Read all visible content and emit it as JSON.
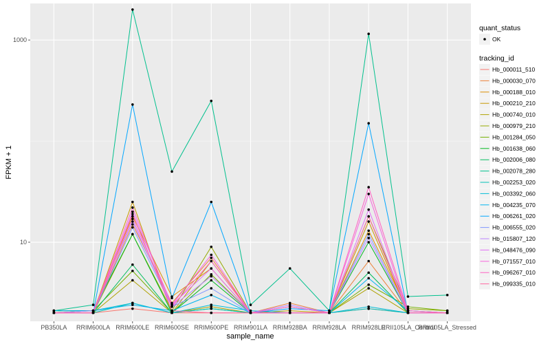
{
  "chart_data": {
    "type": "line",
    "xlabel": "sample_name",
    "ylabel": "FPKM + 1",
    "y_scale": "log10",
    "ylim": [
      1.65,
      2300
    ],
    "y_ticks": [
      {
        "value": 10,
        "label": "10"
      },
      {
        "value": 1000,
        "label": "1000"
      }
    ],
    "grid": true,
    "background": "#ebebeb",
    "legend_position": "right",
    "categories": [
      "PB350LA",
      "RRIM600LA",
      "RRIM600LE",
      "RRIM600SE",
      "RRIM600PE",
      "RRIM901LA",
      "RRIM928BA",
      "RRIM928LA",
      "RRIM928LE",
      "RRII105LA_Control",
      "RRII105LA_Stressed"
    ],
    "legend_quant": {
      "title": "quant_status",
      "items": [
        {
          "label": "OK",
          "marker": "point"
        }
      ]
    },
    "legend_tracking": {
      "title": "tracking_id"
    },
    "series": [
      {
        "name": "Hb_000011_510",
        "color": "#F8766D",
        "values": [
          2,
          2,
          2.2,
          2,
          2,
          2,
          2,
          2,
          2.2,
          2,
          2
        ]
      },
      {
        "name": "Hb_000030_070",
        "color": "#EC8239",
        "values": [
          2,
          2,
          15,
          2.5,
          7,
          2,
          2.5,
          2,
          6.5,
          2,
          2
        ]
      },
      {
        "name": "Hb_000188_010",
        "color": "#DB8E00",
        "values": [
          2.1,
          2.1,
          18,
          2.9,
          5.5,
          2,
          2.3,
          2,
          13,
          2.1,
          2
        ]
      },
      {
        "name": "Hb_000210_210",
        "color": "#C79800",
        "values": [
          2,
          2,
          25,
          2,
          6.5,
          2,
          2.1,
          2,
          16,
          2,
          2
        ]
      },
      {
        "name": "Hb_000740_010",
        "color": "#AFA100",
        "values": [
          2,
          2,
          4.2,
          2,
          2.3,
          2,
          2,
          2,
          3.5,
          2,
          2
        ]
      },
      {
        "name": "Hb_000979_210",
        "color": "#96A900",
        "values": [
          2,
          2,
          12,
          2.1,
          9,
          2,
          2,
          2,
          18,
          2.2,
          2.1
        ]
      },
      {
        "name": "Hb_001284_050",
        "color": "#72B000",
        "values": [
          2,
          2.1,
          5.2,
          2,
          4.8,
          2,
          2,
          2,
          3.8,
          2.3,
          2.1
        ]
      },
      {
        "name": "Hb_001638_060",
        "color": "#00B81F",
        "values": [
          2.1,
          2.1,
          12,
          2,
          4.2,
          2,
          2,
          2,
          10,
          2,
          2
        ]
      },
      {
        "name": "Hb_002006_080",
        "color": "#00BD5C",
        "values": [
          2,
          2,
          6,
          2,
          2.2,
          2,
          2,
          2,
          5,
          2,
          2
        ]
      },
      {
        "name": "Hb_002078_280",
        "color": "#00C08D",
        "values": [
          2.1,
          2.4,
          2000,
          50,
          250,
          2.4,
          5.5,
          2.1,
          1150,
          2.9,
          3
        ]
      },
      {
        "name": "Hb_002253_020",
        "color": "#00C0B5",
        "values": [
          2,
          2,
          2.5,
          2,
          2.2,
          2,
          2,
          2,
          2.2,
          2,
          2
        ]
      },
      {
        "name": "Hb_003392_060",
        "color": "#00BCD6",
        "values": [
          2,
          2.1,
          2.5,
          2,
          2.4,
          2.1,
          2,
          2,
          2.3,
          2,
          2
        ]
      },
      {
        "name": "Hb_004235_070",
        "color": "#00B4EF",
        "values": [
          2.1,
          2.1,
          2.4,
          2.1,
          3,
          2,
          2,
          2,
          4.4,
          2.1,
          2
        ]
      },
      {
        "name": "Hb_006261_020",
        "color": "#00A6FF",
        "values": [
          2,
          2,
          230,
          2.8,
          25,
          2,
          2.2,
          2.1,
          150,
          2,
          2
        ]
      },
      {
        "name": "Hb_006555_020",
        "color": "#7F96FF",
        "values": [
          2,
          2,
          14,
          2.3,
          3.5,
          2,
          2,
          2,
          12,
          2,
          2
        ]
      },
      {
        "name": "Hb_015807_120",
        "color": "#BB83FF",
        "values": [
          2,
          2.1,
          16,
          2.3,
          4.6,
          2,
          2.4,
          2,
          11,
          2,
          2
        ]
      },
      {
        "name": "Hb_048476_090",
        "color": "#E26EF7",
        "values": [
          2,
          2,
          20,
          2.4,
          5.5,
          2,
          2,
          2,
          21,
          2,
          2
        ]
      },
      {
        "name": "Hb_071557_010",
        "color": "#F763DD",
        "values": [
          2,
          2,
          17,
          2.4,
          7.5,
          2,
          2.3,
          2,
          30,
          2,
          2
        ]
      },
      {
        "name": "Hb_096267_010",
        "color": "#FF61C3",
        "values": [
          2,
          2,
          22,
          2.3,
          6.5,
          2,
          2,
          2,
          35,
          2.1,
          2
        ]
      },
      {
        "name": "Hb_099335_010",
        "color": "#FF68A1",
        "values": [
          2,
          2,
          19,
          2.1,
          2,
          2,
          2,
          2,
          18,
          2,
          2
        ]
      }
    ]
  }
}
